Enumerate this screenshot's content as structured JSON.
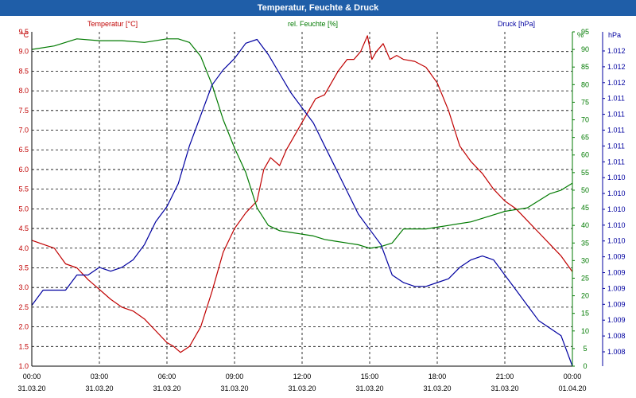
{
  "window": {
    "title": "Temperatur, Feuchte & Druck"
  },
  "colors": {
    "temp": "#c00000",
    "hum": "#007a00",
    "pres": "#0000a0",
    "titlebar": "#1f5ea8"
  },
  "chart_data": {
    "type": "line",
    "title": "Temperatur, Feuchte & Druck",
    "x_ticks": [
      {
        "time": "00:00",
        "date": "31.03.20"
      },
      {
        "time": "03:00",
        "date": "31.03.20"
      },
      {
        "time": "06:00",
        "date": "31.03.20"
      },
      {
        "time": "09:00",
        "date": "31.03.20"
      },
      {
        "time": "12:00",
        "date": "31.03.20"
      },
      {
        "time": "15:00",
        "date": "31.03.20"
      },
      {
        "time": "18:00",
        "date": "31.03.20"
      },
      {
        "time": "21:00",
        "date": "31.03.20"
      },
      {
        "time": "00:00",
        "date": "01.04.20"
      }
    ],
    "xlim": [
      0,
      24
    ],
    "axes": {
      "temp": {
        "label": "°C",
        "min": 1.0,
        "max": 9.5,
        "step": 0.5,
        "ticks": [
          "1.0",
          "1.5",
          "2.0",
          "2.5",
          "3.0",
          "3.5",
          "4.0",
          "4.5",
          "5.0",
          "5.5",
          "6.0",
          "6.5",
          "7.0",
          "7.5",
          "8.0",
          "8.5",
          "9.0",
          "9.5"
        ]
      },
      "hum": {
        "label": "%",
        "min": 0,
        "max": 95,
        "step": 5,
        "ticks": [
          "0",
          "5",
          "10",
          "15",
          "20",
          "25",
          "30",
          "35",
          "40",
          "45",
          "50",
          "55",
          "60",
          "65",
          "70",
          "75",
          "80",
          "85",
          "90",
          "95"
        ]
      },
      "pres": {
        "label": "hPa",
        "min": 1007.9,
        "max": 1012.3,
        "ticks": [
          "1.008",
          "1.008",
          "1.009",
          "1.009",
          "1.009",
          "1.009",
          "1.009",
          "1.010",
          "1.010",
          "1.010",
          "1.010",
          "1.010",
          "1.011",
          "1.011",
          "1.011",
          "1.011",
          "1.011",
          "1.012",
          "1.012",
          "1.012"
        ]
      }
    },
    "series": [
      {
        "name": "Temperatur [°C]",
        "axis": "temp",
        "color": "#c00000",
        "x": [
          0,
          1,
          1.5,
          2,
          2.5,
          3,
          3.5,
          4,
          4.5,
          5,
          5.5,
          6,
          6.3,
          6.6,
          7,
          7.5,
          8,
          8.5,
          9,
          9.5,
          10,
          10.3,
          10.6,
          11,
          11.3,
          11.6,
          12,
          12.3,
          12.6,
          13,
          13.3,
          13.6,
          14,
          14.3,
          14.6,
          14.9,
          15.1,
          15.3,
          15.6,
          15.9,
          16.2,
          16.5,
          17,
          17.5,
          18,
          18.5,
          19,
          19.5,
          20,
          20.5,
          21,
          21.5,
          22,
          22.5,
          23,
          23.5,
          24
        ],
        "values": [
          4.2,
          4.0,
          3.6,
          3.5,
          3.2,
          2.95,
          2.7,
          2.5,
          2.4,
          2.2,
          1.9,
          1.6,
          1.5,
          1.35,
          1.5,
          2.0,
          2.9,
          3.9,
          4.5,
          4.9,
          5.2,
          6.0,
          6.3,
          6.1,
          6.5,
          6.8,
          7.2,
          7.5,
          7.8,
          7.9,
          8.2,
          8.5,
          8.8,
          8.8,
          9.0,
          9.4,
          8.8,
          9.0,
          9.2,
          8.8,
          8.9,
          8.8,
          8.75,
          8.6,
          8.2,
          7.5,
          6.6,
          6.2,
          5.9,
          5.5,
          5.2,
          5.0,
          4.7,
          4.4,
          4.1,
          3.8,
          3.4
        ]
      },
      {
        "name": "rel. Feuchte [%]",
        "axis": "hum",
        "color": "#007a00",
        "x": [
          0,
          1,
          2,
          3,
          4,
          5,
          6,
          6.5,
          7,
          7.5,
          8,
          8.5,
          9,
          9.5,
          10,
          10.5,
          11,
          11.5,
          12,
          12.5,
          13,
          13.5,
          14,
          14.5,
          15,
          15.5,
          16,
          16.5,
          17,
          17.5,
          18,
          18.5,
          19,
          19.5,
          20,
          20.5,
          21,
          21.5,
          22,
          22.5,
          23,
          23.5,
          24
        ],
        "values": [
          90,
          91,
          93,
          92.5,
          92.5,
          92,
          93,
          93,
          92,
          88,
          80,
          70,
          62,
          55,
          45,
          40,
          38.5,
          38,
          37.5,
          37,
          36,
          35.5,
          35,
          34.5,
          33.5,
          34,
          35,
          39,
          39,
          39,
          39.5,
          40,
          40.5,
          41,
          42,
          43,
          44,
          44.5,
          45,
          47,
          49,
          50,
          52
        ]
      },
      {
        "name": "Druck [hPa]",
        "axis": "pres",
        "color": "#0000a0",
        "x": [
          0,
          0.5,
          1,
          1.5,
          2,
          2.5,
          3,
          3.5,
          4,
          4.5,
          5,
          5.5,
          6,
          6.5,
          7,
          7.5,
          8,
          8.5,
          9,
          9.5,
          10,
          10.5,
          11,
          11.5,
          12,
          12.5,
          13,
          13.5,
          14,
          14.5,
          15,
          15.5,
          16,
          16.5,
          17,
          17.5,
          18,
          18.5,
          19,
          19.5,
          20,
          20.5,
          21,
          21.5,
          22,
          22.5,
          23,
          23.5,
          24
        ],
        "values": [
          1008.7,
          1008.9,
          1008.9,
          1008.9,
          1009.1,
          1009.1,
          1009.2,
          1009.15,
          1009.2,
          1009.3,
          1009.5,
          1009.8,
          1010.0,
          1010.3,
          1010.8,
          1011.2,
          1011.6,
          1011.8,
          1011.95,
          1012.15,
          1012.2,
          1012.0,
          1011.75,
          1011.5,
          1011.3,
          1011.1,
          1010.8,
          1010.5,
          1010.2,
          1009.9,
          1009.7,
          1009.5,
          1009.1,
          1009.0,
          1008.95,
          1008.95,
          1009.0,
          1009.05,
          1009.2,
          1009.3,
          1009.35,
          1009.3,
          1009.1,
          1008.9,
          1008.7,
          1008.5,
          1008.4,
          1008.3,
          1007.9
        ]
      }
    ],
    "legend": [
      "Temperatur [°C]",
      "rel. Feuchte [%]",
      "Druck [hPa]"
    ]
  }
}
